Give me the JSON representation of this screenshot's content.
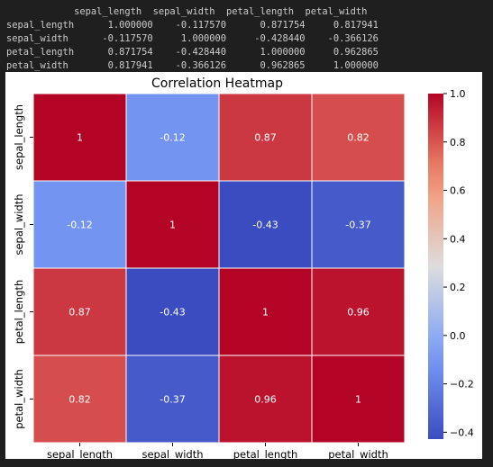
{
  "console_output": {
    "header": "            sepal_length  sepal_width  petal_length  petal_width",
    "rows": [
      "sepal_length      1.000000    -0.117570      0.871754     0.817941",
      "sepal_width      -0.117570     1.000000     -0.428440    -0.366126",
      "petal_length      0.871754    -0.428440      1.000000     0.962865",
      "petal_width       0.817941    -0.366126      0.962865     1.000000"
    ]
  },
  "chart_data": {
    "type": "heatmap",
    "title": "Correlation Heatmap",
    "xlabel": "",
    "ylabel": "",
    "x_labels": [
      "sepal_length",
      "sepal_width",
      "petal_length",
      "petal_width"
    ],
    "y_labels": [
      "sepal_length",
      "sepal_width",
      "petal_length",
      "petal_width"
    ],
    "values": [
      [
        1.0,
        -0.11757,
        0.871754,
        0.817941
      ],
      [
        -0.11757,
        1.0,
        -0.42844,
        -0.366126
      ],
      [
        0.871754,
        -0.42844,
        1.0,
        0.962865
      ],
      [
        0.817941,
        -0.366126,
        0.962865,
        1.0
      ]
    ],
    "annotations": [
      [
        "1",
        "-0.12",
        "0.87",
        "0.82"
      ],
      [
        "-0.12",
        "1",
        "-0.43",
        "-0.37"
      ],
      [
        "0.87",
        "-0.43",
        "1",
        "0.96"
      ],
      [
        "0.82",
        "-0.37",
        "0.96",
        "1"
      ]
    ],
    "colormap": "coolwarm",
    "colorbar": {
      "vmin": -0.42844,
      "vmax": 1.0,
      "ticks": [
        1.0,
        0.8,
        0.6,
        0.4,
        0.2,
        0.0,
        -0.2,
        -0.4
      ],
      "tick_labels": [
        "1.0",
        "0.8",
        "0.6",
        "0.4",
        "0.2",
        "0.0",
        "−0.2",
        "−0.4"
      ]
    },
    "grid": false
  },
  "colors": {
    "console_background": "#1f1f1f",
    "console_text": "#cccccc",
    "figure_background": "#ffffff",
    "cell_border": "#ffffff"
  }
}
